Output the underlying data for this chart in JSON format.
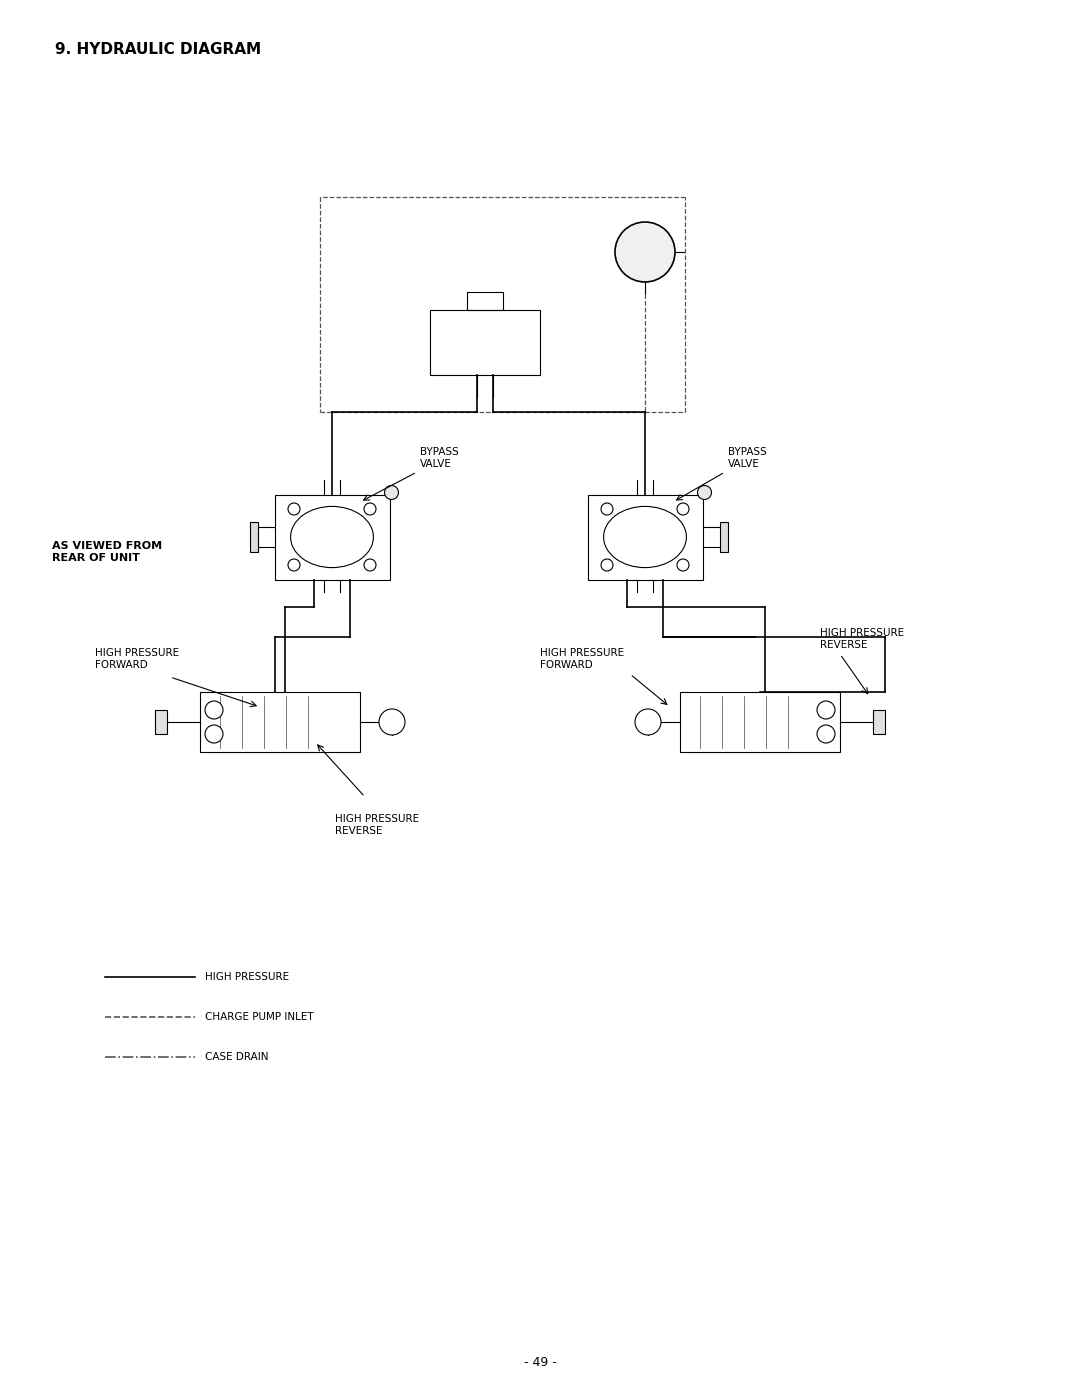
{
  "title": "9. HYDRAULIC DIAGRAM",
  "page_number": "- 49 -",
  "background_color": "#ffffff",
  "line_color": "#000000",
  "dashed_color": "#555555",
  "text_color": "#000000",
  "fig_width": 10.8,
  "fig_height": 13.97,
  "labels": {
    "as_viewed": "AS VIEWED FROM\nREAR OF UNIT",
    "bypass_left": "BYPASS\nVALVE",
    "bypass_right": "BYPASS\nVALVE",
    "hp_fwd_left": "HIGH PRESSURE\nFORWARD",
    "hp_fwd_right": "HIGH PRESSURE\nFORWARD",
    "hp_rev_left": "HIGH PRESSURE\nREVERSE",
    "hp_rev_right": "HIGH PRESSURE\nREVERSE",
    "legend_hp": "HIGH PRESSURE",
    "legend_cp": "CHARGE PUMP INLET",
    "legend_cd": "CASE DRAIN"
  }
}
